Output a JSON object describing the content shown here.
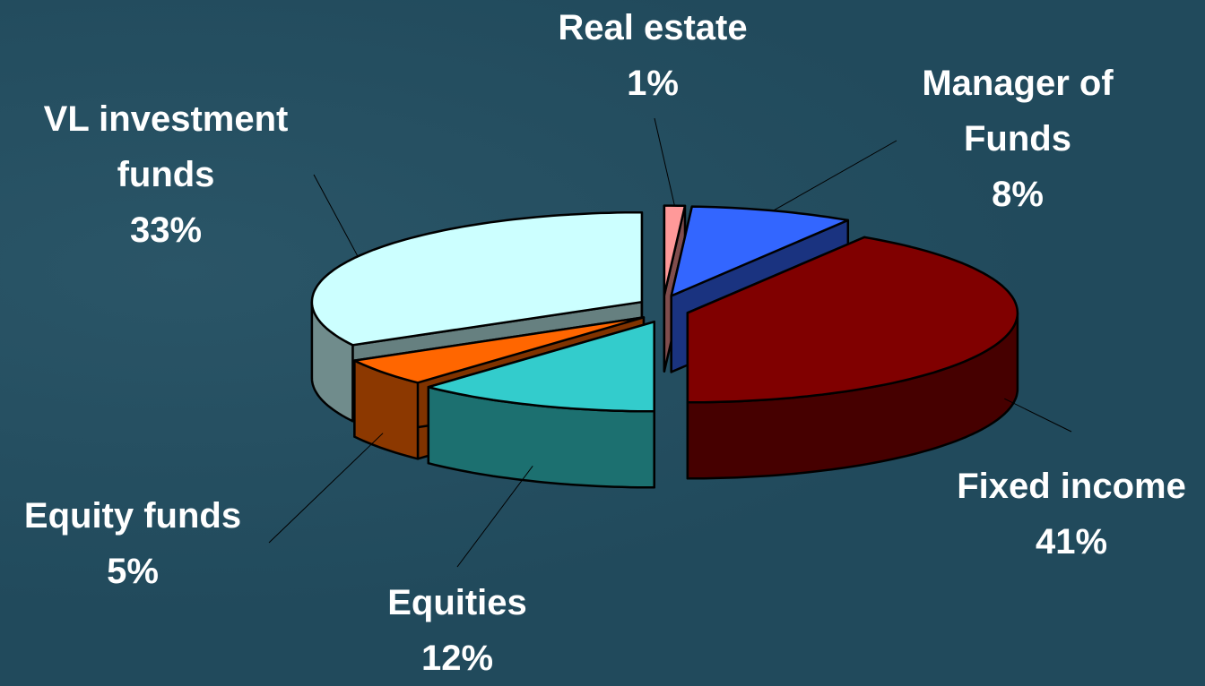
{
  "chart_data": {
    "type": "pie3d",
    "categories": [
      "Real estate",
      "Manager of Funds",
      "Fixed income",
      "Equities",
      "Equity funds",
      "VL investment funds"
    ],
    "values": [
      1,
      8,
      41,
      12,
      5,
      33
    ],
    "value_labels": [
      "1%",
      "8%",
      "41%",
      "12%",
      "5%",
      "33%"
    ],
    "colors": [
      "#ff9999",
      "#3366ff",
      "#800000",
      "#33cccc",
      "#ff6600",
      "#ccffff"
    ]
  }
}
